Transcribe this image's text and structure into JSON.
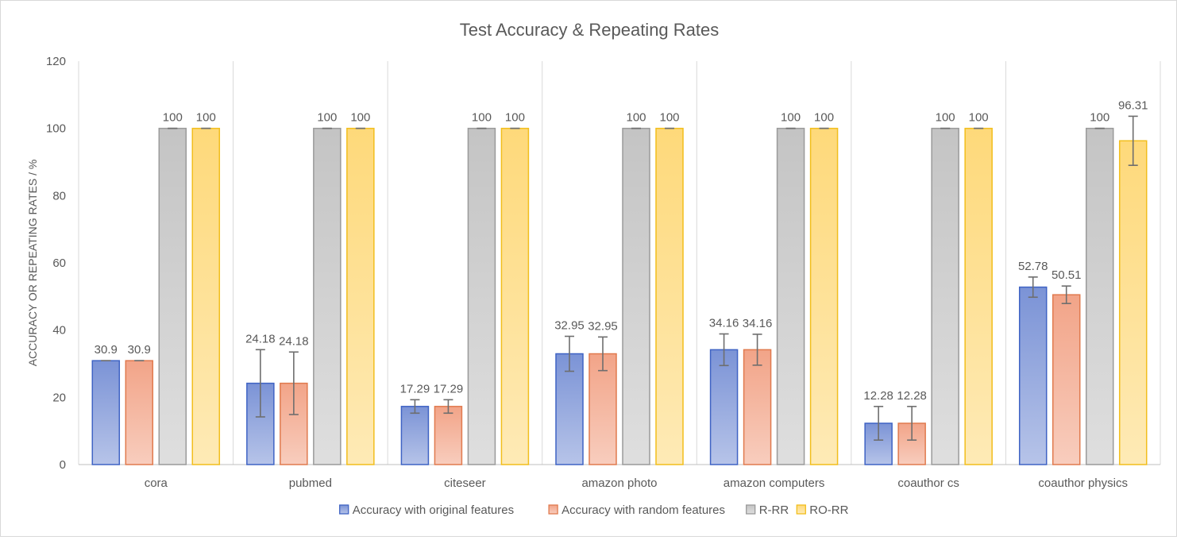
{
  "chart_data": {
    "type": "bar",
    "title": "Test Accuracy  &  Repeating  Rates",
    "ylabel": "ACCURACY OR REPEATING RATES / %",
    "xlabel": "",
    "ylim": [
      0,
      120
    ],
    "yticks": [
      0,
      20,
      40,
      60,
      80,
      100,
      120
    ],
    "grid": "vertical category separators",
    "legend_position": "bottom",
    "categories": [
      "cora",
      "pubmed",
      "citeseer",
      "amazon photo",
      "amazon computers",
      "coauthor cs",
      "coauthor physics"
    ],
    "series": [
      {
        "name": "Accuracy with original features",
        "color": "#7b93d6",
        "edge": "#3f63c4",
        "values": [
          30.9,
          24.18,
          17.29,
          32.95,
          34.16,
          12.28,
          52.78
        ],
        "labels": [
          "30.9",
          "24.18",
          "17.29",
          "32.95",
          "34.16",
          "12.28",
          "52.78"
        ],
        "errors": [
          0,
          10,
          2,
          5.2,
          4.7,
          5,
          3
        ]
      },
      {
        "name": "Accuracy with random features",
        "color": "#f2a488",
        "edge": "#e07a4e",
        "values": [
          30.9,
          24.18,
          17.29,
          32.95,
          34.16,
          12.28,
          50.51
        ],
        "labels": [
          "30.9",
          "24.18",
          "17.29",
          "32.95",
          "34.16",
          "12.28",
          "50.51"
        ],
        "errors": [
          0,
          9.3,
          2,
          5,
          4.6,
          5,
          2.6
        ]
      },
      {
        "name": "R-RR",
        "color": "#c4c4c4",
        "edge": "#9a9a9a",
        "values": [
          100,
          100,
          100,
          100,
          100,
          100,
          100
        ],
        "labels": [
          "100",
          "100",
          "100",
          "100",
          "100",
          "100",
          "100"
        ],
        "errors": [
          0,
          0,
          0,
          0,
          0,
          0,
          0
        ]
      },
      {
        "name": "RO-RR",
        "color": "#fed97a",
        "edge": "#f2be1c",
        "values": [
          100,
          100,
          100,
          100,
          100,
          100,
          96.31
        ],
        "labels": [
          "100",
          "100",
          "100",
          "100",
          "100",
          "100",
          "96.31"
        ],
        "errors": [
          0,
          0,
          0,
          0,
          0,
          0,
          7.3
        ]
      }
    ]
  }
}
